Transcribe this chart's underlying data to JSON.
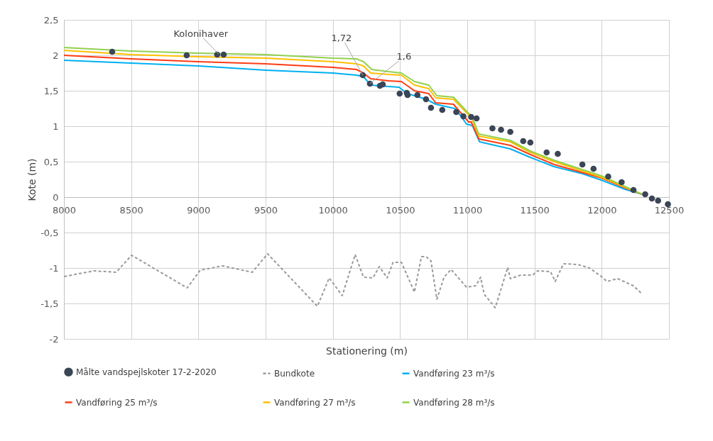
{
  "chart_data": {
    "type": "line",
    "xlabel": "Stationering (m)",
    "ylabel": "Kote (m)",
    "xlim": [
      8000,
      12500
    ],
    "xticks": [
      8000,
      8500,
      9000,
      9500,
      10000,
      10500,
      11000,
      11500,
      12000,
      12500
    ],
    "ylim": [
      -2,
      2.5
    ],
    "yticks": [
      {
        "value": -2,
        "label": "-2"
      },
      {
        "value": -1.5,
        "label": "-1,5"
      },
      {
        "value": -1,
        "label": "-1"
      },
      {
        "value": -0.5,
        "label": "-0,5"
      },
      {
        "value": 0,
        "label": "0"
      },
      {
        "value": 0.5,
        "label": "0,5"
      },
      {
        "value": 1,
        "label": "1"
      },
      {
        "value": 1.5,
        "label": "1,5"
      },
      {
        "value": 2,
        "label": "2"
      },
      {
        "value": 2.5,
        "label": "2,5"
      }
    ],
    "grid": true,
    "legend": "bottom",
    "annotations": [
      {
        "text": "Kolonihaver",
        "x": 9150,
        "y": 2.02
      },
      {
        "text": "1,72",
        "x": 10223,
        "y": 1.72
      },
      {
        "text": "1,6",
        "x": 10276,
        "y": 1.6
      }
    ],
    "series": [
      {
        "name": "Målte vandspejlskoter 17-2-2020",
        "type": "scatter",
        "marker": "circle",
        "color": "#3a4556",
        "x": [
          8359,
          8913,
          9140,
          9188,
          10223,
          10276,
          10350,
          10371,
          10497,
          10550,
          10556,
          10629,
          10693,
          10730,
          10814,
          10918,
          10971,
          11029,
          11069,
          11187,
          11251,
          11320,
          11416,
          11469,
          11590,
          11673,
          11856,
          11939,
          12048,
          12148,
          12236,
          12323,
          12373,
          12419,
          12492
        ],
        "values": [
          2.05,
          2.0,
          2.01,
          2.01,
          1.72,
          1.6,
          1.57,
          1.59,
          1.46,
          1.47,
          1.44,
          1.44,
          1.38,
          1.26,
          1.23,
          1.2,
          1.14,
          1.13,
          1.11,
          0.97,
          0.95,
          0.92,
          0.79,
          0.77,
          0.63,
          0.61,
          0.46,
          0.4,
          0.29,
          0.21,
          0.1,
          0.04,
          -0.02,
          -0.05,
          -0.1
        ]
      },
      {
        "name": "Bundkote",
        "type": "line",
        "line_style": "dashed",
        "color": "#9a9a9a",
        "x": [
          8002,
          8222,
          8389,
          8503,
          8917,
          9014,
          9181,
          9401,
          9515,
          9885,
          9973,
          10070,
          10166,
          10228,
          10298,
          10346,
          10404,
          10448,
          10510,
          10607,
          10659,
          10694,
          10730,
          10774,
          10827,
          10879,
          10994,
          11064,
          11099,
          11126,
          11208,
          11301,
          11320,
          11398,
          11486,
          11522,
          11619,
          11654,
          11715,
          11821,
          11909,
          11997,
          12039,
          12118,
          12234,
          12303
        ],
        "values": [
          -1.12,
          -1.04,
          -1.06,
          -0.82,
          -1.28,
          -1.03,
          -0.97,
          -1.06,
          -0.8,
          -1.54,
          -1.14,
          -1.39,
          -0.81,
          -1.13,
          -1.14,
          -0.98,
          -1.14,
          -0.92,
          -0.92,
          -1.34,
          -0.84,
          -0.84,
          -0.9,
          -1.44,
          -1.13,
          -1.02,
          -1.27,
          -1.25,
          -1.13,
          -1.37,
          -1.56,
          -0.99,
          -1.15,
          -1.1,
          -1.1,
          -1.04,
          -1.05,
          -1.19,
          -0.94,
          -0.95,
          -1.0,
          -1.12,
          -1.19,
          -1.15,
          -1.25,
          -1.37
        ]
      },
      {
        "name": "Vandføring 23 m³/s",
        "type": "line",
        "line_style": "solid",
        "color": "#00b0f0",
        "x": [
          8000,
          8500,
          9000,
          9500,
          10000,
          10175,
          10228,
          10281,
          10413,
          10492,
          10554,
          10607,
          10694,
          10765,
          10906,
          10950,
          10994,
          11038,
          11091,
          11320,
          11469,
          11645,
          11856,
          11997,
          12173,
          12300
        ],
        "values": [
          1.93,
          1.89,
          1.85,
          1.79,
          1.75,
          1.72,
          1.7,
          1.58,
          1.56,
          1.55,
          1.46,
          1.43,
          1.38,
          1.31,
          1.25,
          1.15,
          1.03,
          1.01,
          0.78,
          0.68,
          0.56,
          0.43,
          0.33,
          0.24,
          0.11,
          0.04
        ]
      },
      {
        "name": "Vandføring 25 m³/s",
        "type": "line",
        "line_style": "solid",
        "color": "#ff3c14",
        "x": [
          8000,
          8500,
          9000,
          9500,
          10000,
          10175,
          10228,
          10281,
          10413,
          10510,
          10607,
          10713,
          10765,
          10897,
          11010,
          11029,
          11086,
          11320,
          11469,
          11645,
          11997,
          12173,
          12300
        ],
        "values": [
          2.0,
          1.95,
          1.91,
          1.88,
          1.83,
          1.8,
          1.75,
          1.67,
          1.64,
          1.63,
          1.5,
          1.46,
          1.33,
          1.31,
          1.06,
          1.06,
          0.82,
          0.73,
          0.6,
          0.46,
          0.27,
          0.13,
          0.04
        ]
      },
      {
        "name": "Vandføring 27 m³/s",
        "type": "line",
        "line_style": "solid",
        "color": "#ffc000",
        "x": [
          8000,
          8500,
          9000,
          9500,
          10000,
          10175,
          10228,
          10281,
          10413,
          10510,
          10607,
          10713,
          10765,
          10897,
          11010,
          11029,
          11086,
          11320,
          11469,
          11645,
          11997,
          12173,
          12300
        ],
        "values": [
          2.07,
          2.01,
          1.98,
          1.96,
          1.91,
          1.88,
          1.85,
          1.75,
          1.73,
          1.72,
          1.58,
          1.53,
          1.4,
          1.38,
          1.16,
          1.13,
          0.86,
          0.78,
          0.63,
          0.5,
          0.28,
          0.14,
          0.04
        ]
      },
      {
        "name": "Vandføring 28 m³/s",
        "type": "line",
        "line_style": "solid",
        "color": "#92d050",
        "x": [
          8000,
          8500,
          9000,
          9500,
          10000,
          10175,
          10228,
          10290,
          10413,
          10510,
          10607,
          10713,
          10774,
          10897,
          11010,
          11029,
          11086,
          11320,
          11469,
          11645,
          11997,
          12173,
          12300
        ],
        "values": [
          2.11,
          2.06,
          2.03,
          2.01,
          1.96,
          1.95,
          1.91,
          1.8,
          1.77,
          1.75,
          1.63,
          1.58,
          1.43,
          1.41,
          1.18,
          1.16,
          0.89,
          0.8,
          0.65,
          0.52,
          0.3,
          0.15,
          0.04
        ]
      }
    ]
  }
}
